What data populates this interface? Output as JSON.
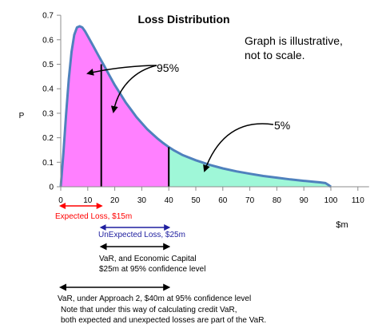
{
  "chart_data": {
    "type": "area",
    "title": "Loss Distribution",
    "xlabel": "$m",
    "ylabel": "P",
    "xlim": [
      0,
      110
    ],
    "ylim": [
      0,
      0.7
    ],
    "x_ticks": [
      0,
      10,
      20,
      30,
      40,
      50,
      60,
      70,
      80,
      90,
      100,
      110
    ],
    "y_ticks": [
      0,
      0.1,
      0.2,
      0.3,
      0.4,
      0.5,
      0.6,
      0.7
    ],
    "curve": {
      "x": [
        0,
        1,
        2,
        3,
        4,
        5,
        6,
        7,
        8,
        9,
        10,
        12,
        14,
        16,
        18,
        20,
        22,
        24,
        26,
        28,
        30,
        32,
        34,
        36,
        38,
        40,
        42,
        45,
        50,
        55,
        60,
        65,
        70,
        75,
        80,
        85,
        90,
        94,
        96,
        98,
        99,
        100
      ],
      "y": [
        0,
        0.14,
        0.3,
        0.44,
        0.55,
        0.62,
        0.65,
        0.655,
        0.65,
        0.635,
        0.615,
        0.575,
        0.535,
        0.495,
        0.455,
        0.415,
        0.38,
        0.345,
        0.315,
        0.285,
        0.26,
        0.235,
        0.215,
        0.195,
        0.178,
        0.162,
        0.148,
        0.13,
        0.108,
        0.09,
        0.075,
        0.063,
        0.053,
        0.044,
        0.037,
        0.03,
        0.024,
        0.02,
        0.018,
        0.015,
        0.008,
        0
      ]
    },
    "regions": [
      {
        "from": 0,
        "to": 40,
        "color": "#ff80ff"
      },
      {
        "from": 40,
        "to": 100,
        "color": "#9ff7d8"
      }
    ],
    "markers": [
      {
        "x": 15,
        "y": 0.5
      },
      {
        "x": 40,
        "y": 0.162
      }
    ],
    "curve_color": "#4f81bd",
    "grid": false,
    "notes": {
      "disclaimer_line1": "Graph is illustrative,",
      "disclaimer_line2": "not to scale.",
      "label_95": "95%",
      "label_5": "5%"
    },
    "ranges": [
      {
        "from": 0,
        "to": 15,
        "color": "#ff0000",
        "label": "Expected Loss, $15m"
      },
      {
        "from": 15,
        "to": 40,
        "color": "#1f1f9f",
        "label": "UnExpected Loss, $25m"
      },
      {
        "from": 15,
        "to": 40,
        "color": "#000000",
        "label_line1": "VaR, and Economic Capital",
        "label_line2": "$25m at 95% confidence level"
      },
      {
        "from": 0,
        "to": 40,
        "color": "#000000",
        "label_line1": "VaR, under Approach 2, $40m at 95% confidence level",
        "label_line2": "Note that under this way of calculating credit VaR,",
        "label_line3": "both expected and unexpected losses are part of the VaR."
      }
    ]
  }
}
